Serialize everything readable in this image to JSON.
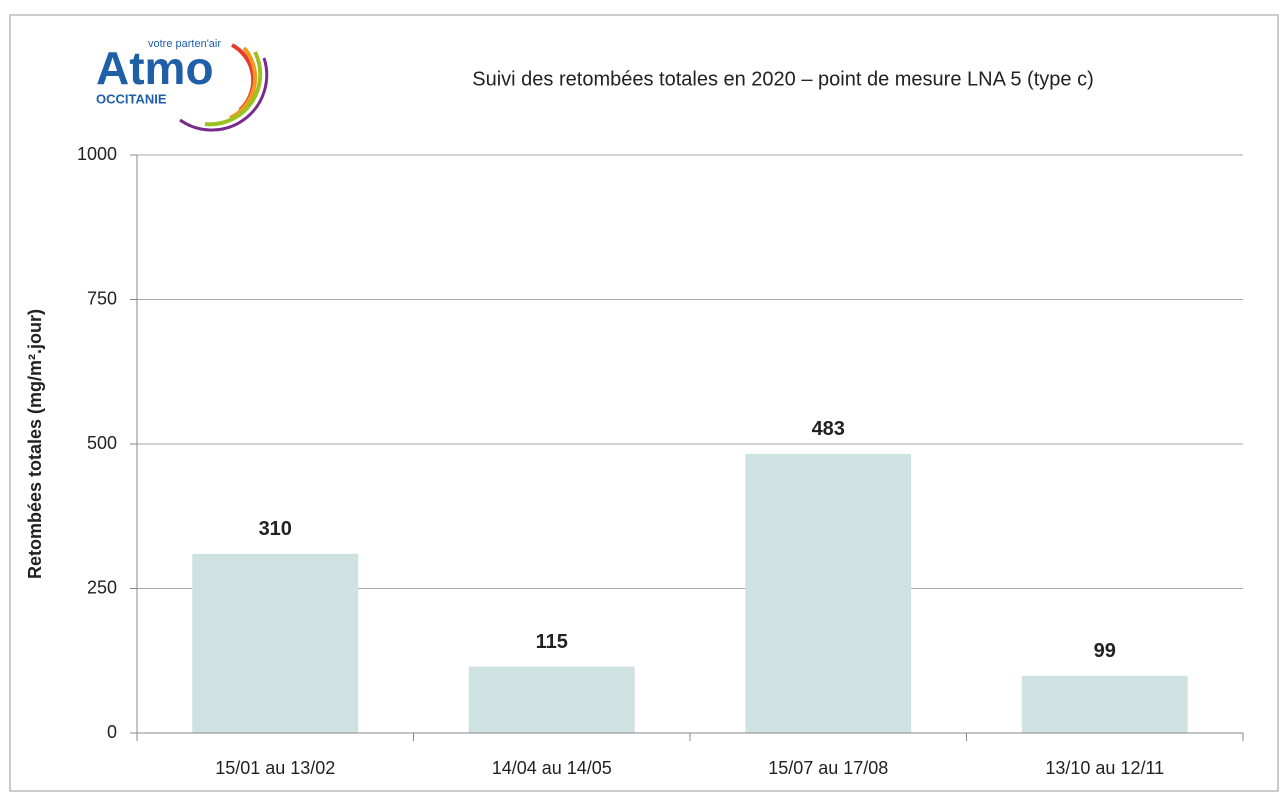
{
  "logo": {
    "name": "Atmo",
    "tagline": "votre parten'air",
    "region": "OCCITANIE"
  },
  "chart_data": {
    "type": "bar",
    "title": "Suivi des retombées totales en 2020 – point de mesure LNA 5 (type c)",
    "y_label": "Retombées totales (mg/m².jour)",
    "categories": [
      "15/01 au 13/02",
      "14/04 au 14/05",
      "15/07 au 17/08",
      "13/10 au 12/11"
    ],
    "values": [
      310,
      115,
      483,
      99
    ],
    "color": "#cfe2e2",
    "ylim": [
      0,
      1000
    ],
    "yticks": [
      0,
      250,
      500,
      750,
      1000
    ],
    "grid": true
  }
}
